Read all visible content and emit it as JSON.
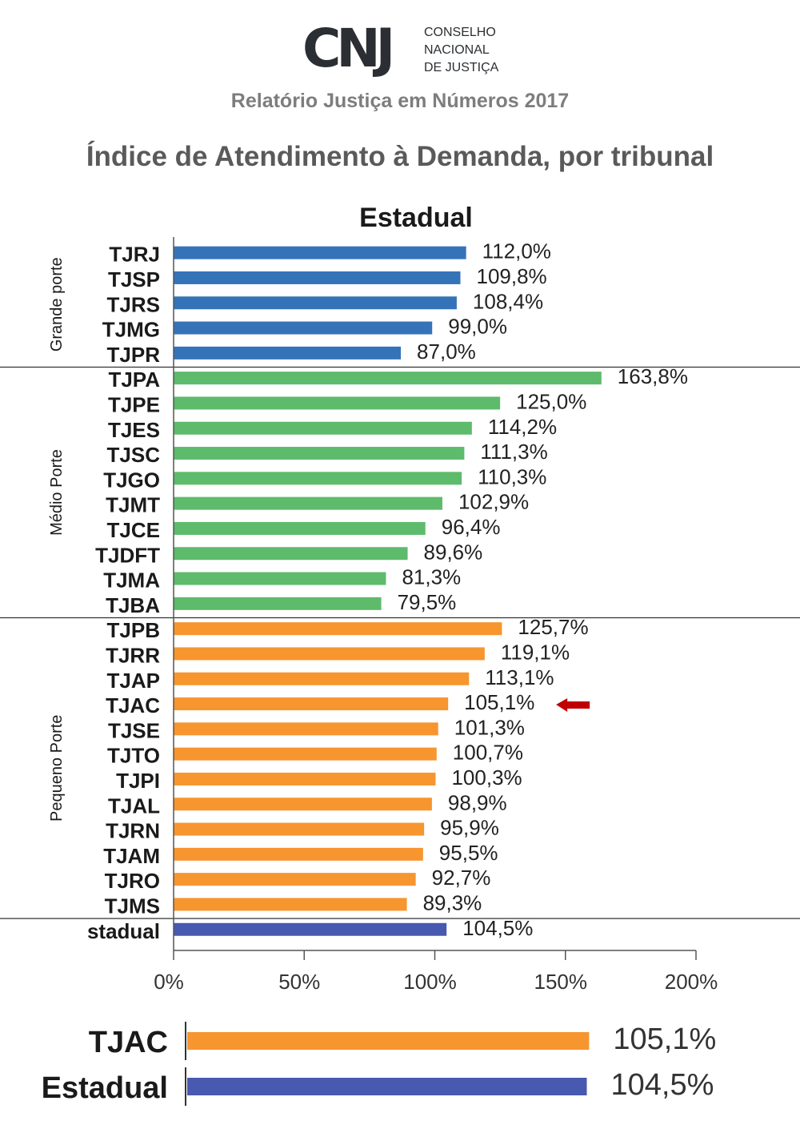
{
  "header": {
    "logo_mark": "CNJ",
    "logo_lines": [
      "CONSELHO",
      "NACIONAL",
      "DE JUSTIÇA"
    ],
    "subtitle": "Relatório Justiça em Números 2017",
    "title": "Índice de Atendimento à Demanda, por tribunal"
  },
  "colors": {
    "grande": "#3573b9",
    "medio": "#5dbb6b",
    "pequeno": "#f7952f",
    "estadual": "#4859b0",
    "arrow": "#c00000",
    "axis": "#555555"
  },
  "chart_data": [
    {
      "type": "bar",
      "orientation": "horizontal",
      "title": "Estadual",
      "xlabel": "",
      "ylabel": "",
      "xlim": [
        0,
        200
      ],
      "x_ticks": [
        "0%",
        "50%",
        "100%",
        "150%",
        "200%"
      ],
      "x_tick_values": [
        0,
        50,
        100,
        150,
        200
      ],
      "groups": [
        {
          "name": "Grande porte",
          "color_key": "grande",
          "categories": [
            "TJRJ",
            "TJSP",
            "TJRS",
            "TJMG",
            "TJPR"
          ],
          "values": [
            112.0,
            109.8,
            108.4,
            99.0,
            87.0
          ],
          "labels": [
            "112,0%",
            "109,8%",
            "108,4%",
            "99,0%",
            "87,0%"
          ]
        },
        {
          "name": "Médio Porte",
          "color_key": "medio",
          "categories": [
            "TJPA",
            "TJPE",
            "TJES",
            "TJSC",
            "TJGO",
            "TJMT",
            "TJCE",
            "TJDFT",
            "TJMA",
            "TJBA"
          ],
          "values": [
            163.8,
            125.0,
            114.2,
            111.3,
            110.3,
            102.9,
            96.4,
            89.6,
            81.3,
            79.5
          ],
          "labels": [
            "163,8%",
            "125,0%",
            "114,2%",
            "111,3%",
            "110,3%",
            "102,9%",
            "96,4%",
            "89,6%",
            "81,3%",
            "79,5%"
          ]
        },
        {
          "name": "Pequeno Porte",
          "color_key": "pequeno",
          "categories": [
            "TJPB",
            "TJRR",
            "TJAP",
            "TJAC",
            "TJSE",
            "TJTO",
            "TJPI",
            "TJAL",
            "TJRN",
            "TJAM",
            "TJRO",
            "TJMS"
          ],
          "values": [
            125.7,
            119.1,
            113.1,
            105.1,
            101.3,
            100.7,
            100.3,
            98.9,
            95.9,
            95.5,
            92.7,
            89.3
          ],
          "labels": [
            "125,7%",
            "119,1%",
            "113,1%",
            "105,1%",
            "101,3%",
            "100,7%",
            "100,3%",
            "98,9%",
            "95,9%",
            "95,5%",
            "92,7%",
            "89,3%"
          ]
        },
        {
          "name": "",
          "color_key": "estadual",
          "categories": [
            "stadual"
          ],
          "values": [
            104.5
          ],
          "labels": [
            "104,5%"
          ]
        }
      ],
      "highlight": "TJAC"
    },
    {
      "type": "bar",
      "orientation": "horizontal",
      "title": "",
      "categories": [
        "TJAC",
        "Estadual"
      ],
      "values": [
        105.1,
        104.5
      ],
      "labels": [
        "105,1%",
        "104,5%"
      ],
      "color_keys": [
        "pequeno",
        "estadual"
      ]
    }
  ]
}
